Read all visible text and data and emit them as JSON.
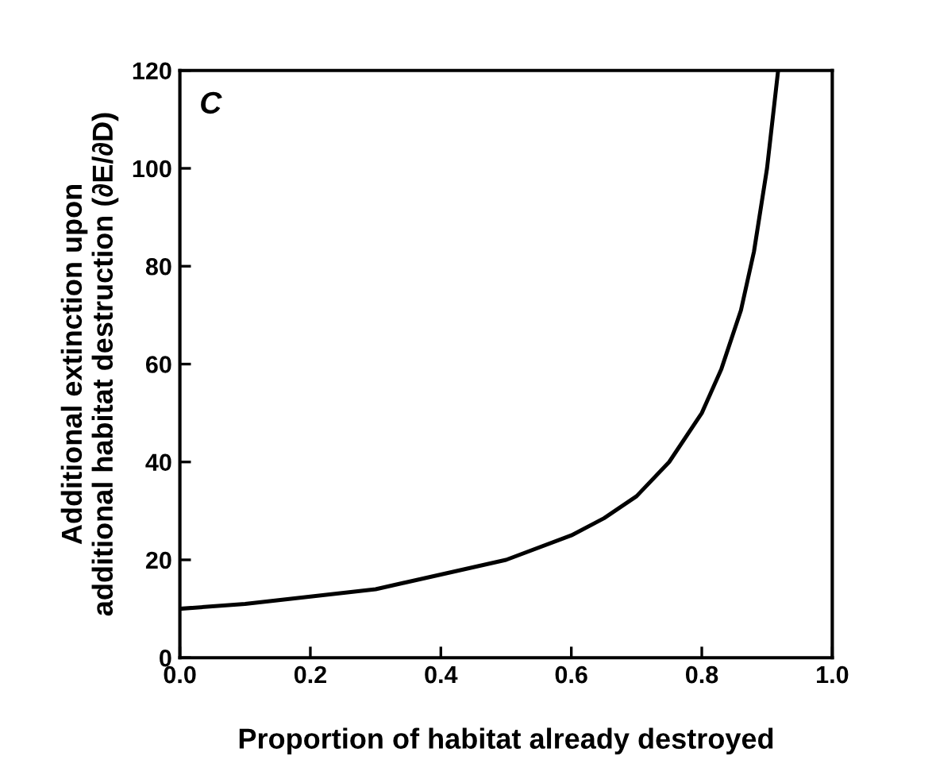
{
  "chart_data": {
    "type": "line",
    "xlabel": "Proportion of habitat already destroyed",
    "ylabel": "Additional extinction upon\nadditional habitat destruction (∂E/∂D)",
    "annotations": [
      "C"
    ],
    "x": [
      0,
      0.1,
      0.2,
      0.3,
      0.4,
      0.5,
      0.6,
      0.65,
      0.7,
      0.75,
      0.8,
      0.83,
      0.86,
      0.88,
      0.9,
      0.917
    ],
    "series": [
      {
        "color": "#000000",
        "values": [
          10,
          11,
          12.5,
          14,
          17,
          20,
          25,
          28.5,
          33,
          40,
          50,
          59,
          71,
          83,
          100,
          120
        ]
      }
    ],
    "xlim": [
      0,
      1
    ],
    "ylim": [
      0,
      120
    ],
    "xticks": [
      {
        "value": 0,
        "label": "0.0"
      },
      {
        "value": 0.2,
        "label": "0.2"
      },
      {
        "value": 0.4,
        "label": "0.4"
      },
      {
        "value": 0.6,
        "label": "0.6"
      },
      {
        "value": 0.8,
        "label": "0.8"
      },
      {
        "value": 1,
        "label": "1.0"
      }
    ],
    "yticks": [
      0,
      20,
      40,
      60,
      80,
      100,
      120
    ],
    "grid": false,
    "legend": false,
    "marker": "none",
    "line_style": "solid"
  }
}
